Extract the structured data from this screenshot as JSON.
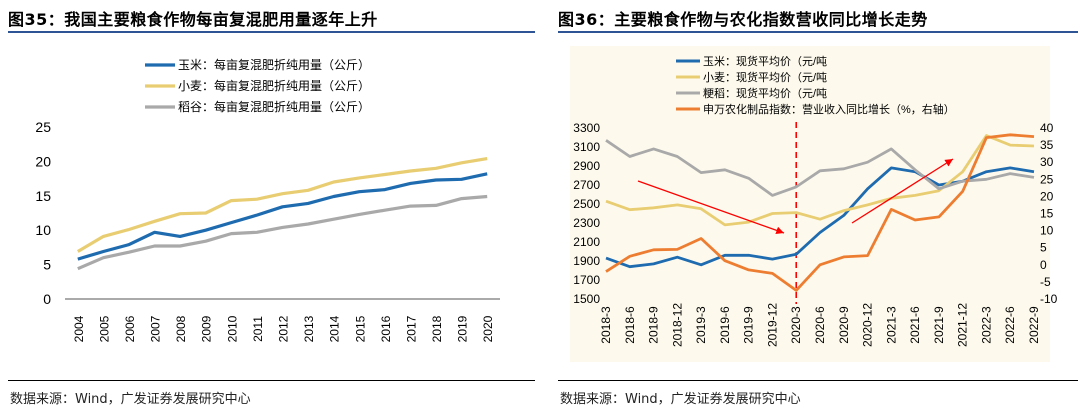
{
  "left": {
    "title": "图35：我国主要粮食作物每亩复混肥用量逐年上升",
    "source": "数据来源：Wind，广发证券发展研究中心"
  },
  "right": {
    "title": "图36：主要粮食作物与农化指数营收同比增长走势",
    "source": "数据来源：Wind，广发证券发展研究中心"
  },
  "colors": {
    "blue": "#1f6bb0",
    "yellow": "#e9cd72",
    "gray": "#a9a9a9",
    "orange": "#ed7d31",
    "red": "#ff0000",
    "rule": "#2f5496",
    "right_bg": "#fdfaed"
  },
  "chart_data": [
    {
      "type": "line",
      "title": "",
      "categories": [
        "2004",
        "2005",
        "2006",
        "2007",
        "2008",
        "2009",
        "2010",
        "2011",
        "2012",
        "2013",
        "2014",
        "2015",
        "2016",
        "2017",
        "2018",
        "2019",
        "2020"
      ],
      "ylim": [
        0,
        25
      ],
      "yticks": [
        0,
        5,
        10,
        15,
        20,
        25
      ],
      "series": [
        {
          "name": "玉米：每亩复混肥折纯用量（公斤）",
          "color": "blue",
          "values": [
            5.8,
            6.9,
            7.9,
            9.7,
            9.1,
            10.0,
            11.1,
            12.2,
            13.4,
            13.9,
            14.9,
            15.6,
            15.9,
            16.8,
            17.3,
            17.4,
            18.2
          ]
        },
        {
          "name": "小麦：每亩复混肥折纯用量（公斤）",
          "color": "yellow",
          "values": [
            6.9,
            9.1,
            10.1,
            11.3,
            12.4,
            12.5,
            14.3,
            14.5,
            15.3,
            15.8,
            17.0,
            17.6,
            18.1,
            18.6,
            19.0,
            19.8,
            20.4
          ]
        },
        {
          "name": "稻谷：每亩复混肥折纯用量（公斤）",
          "color": "gray",
          "values": [
            4.4,
            6.0,
            6.8,
            7.7,
            7.7,
            8.4,
            9.5,
            9.7,
            10.4,
            10.9,
            11.6,
            12.3,
            12.9,
            13.5,
            13.6,
            14.6,
            14.9
          ]
        }
      ]
    },
    {
      "type": "line",
      "title": "",
      "categories": [
        "2018-3",
        "2018-6",
        "2018-9",
        "2018-12",
        "2019-3",
        "2019-6",
        "2019-9",
        "2019-12",
        "2020-3",
        "2020-6",
        "2020-9",
        "2020-12",
        "2021-3",
        "2021-6",
        "2021-9",
        "2021-12",
        "2022-3",
        "2022-6",
        "2022-9"
      ],
      "ylim_left": [
        1500,
        3300
      ],
      "yticks_left": [
        1500,
        1700,
        1900,
        2100,
        2300,
        2500,
        2700,
        2900,
        3100,
        3300
      ],
      "ylim_right": [
        -10,
        40
      ],
      "yticks_right": [
        -10,
        -5,
        0,
        5,
        10,
        15,
        20,
        25,
        30,
        35,
        40
      ],
      "series": [
        {
          "name": "玉米：现货平均价（元/吨",
          "color": "blue",
          "axis": "left",
          "values": [
            1930,
            1840,
            1870,
            1940,
            1860,
            1960,
            1960,
            1920,
            1970,
            2200,
            2380,
            2660,
            2880,
            2840,
            2700,
            2740,
            2840,
            2880,
            2840
          ]
        },
        {
          "name": "小麦：现货平均价（元/吨",
          "color": "yellow",
          "axis": "left",
          "values": [
            2530,
            2440,
            2460,
            2490,
            2450,
            2280,
            2310,
            2400,
            2410,
            2340,
            2430,
            2490,
            2560,
            2590,
            2640,
            2840,
            3220,
            3120,
            3110
          ]
        },
        {
          "name": "粳稻：现货平均价（元/吨",
          "color": "gray",
          "axis": "left",
          "values": [
            3170,
            3000,
            3080,
            3000,
            2830,
            2860,
            2770,
            2590,
            2680,
            2850,
            2870,
            2940,
            3080,
            2860,
            2660,
            2740,
            2760,
            2820,
            2780
          ]
        },
        {
          "name": "申万农化制品指数：营业收入同比增长（%，右轴）",
          "color": "orange",
          "axis": "right",
          "values": [
            -2.0,
            2.5,
            4.4,
            4.5,
            7.7,
            1.2,
            -1.5,
            -2.5,
            -7.5,
            0.0,
            2.3,
            2.7,
            16.2,
            13.1,
            14.0,
            21.5,
            37.2,
            38.0,
            37.5
          ]
        }
      ],
      "annotation": {
        "type": "vertical-dashed-line",
        "at": "2020-3"
      }
    }
  ]
}
